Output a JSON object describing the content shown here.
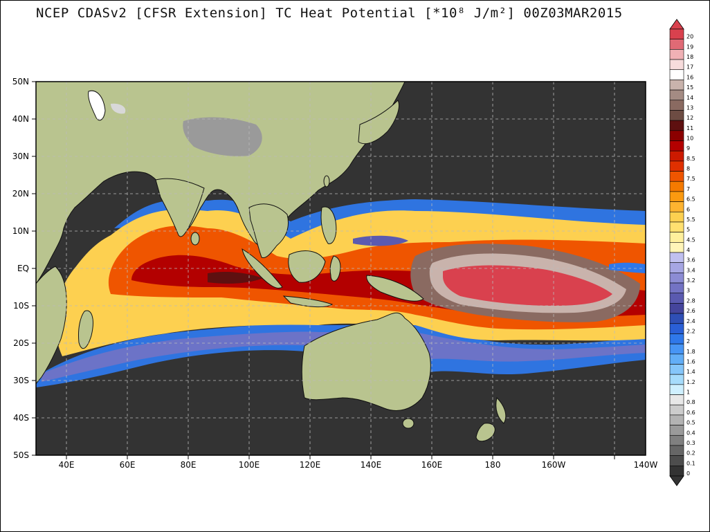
{
  "title": "NCEP CDASv2 [CFSR Extension] TC Heat Potential [*10⁸ J/m²] 00Z03MAR2015",
  "axes": {
    "lat_labels": [
      "50N",
      "40N",
      "30N",
      "20N",
      "10N",
      "EQ",
      "10S",
      "20S",
      "30S",
      "40S",
      "50S"
    ],
    "lon_labels": [
      "40E",
      "60E",
      "80E",
      "100E",
      "120E",
      "140E",
      "160E",
      "180",
      "160W",
      "140W"
    ]
  },
  "colorbar": {
    "levels": [
      "20",
      "19",
      "18",
      "17",
      "16",
      "15",
      "14",
      "13",
      "12",
      "11",
      "10",
      "9",
      "8.5",
      "8",
      "7.5",
      "7",
      "6.5",
      "6",
      "5.5",
      "5",
      "4.5",
      "4",
      "3.6",
      "3.4",
      "3.2",
      "3",
      "2.8",
      "2.6",
      "2.4",
      "2.2",
      "2",
      "1.8",
      "1.6",
      "1.4",
      "1.2",
      "1",
      "0.8",
      "0.6",
      "0.5",
      "0.4",
      "0.3",
      "0.2",
      "0.1",
      "0"
    ],
    "colors": [
      "#d9414e",
      "#e06a75",
      "#f0b1b5",
      "#f7dcdc",
      "#ffffff",
      "#c9b3ac",
      "#a48b83",
      "#8a6a61",
      "#6d4c43",
      "#5e1010",
      "#8b0000",
      "#b30000",
      "#cc1a00",
      "#e03000",
      "#ef5500",
      "#f57a00",
      "#fb9a10",
      "#fdb330",
      "#fdd050",
      "#ffe070",
      "#fff09c",
      "#fff5b8",
      "#c0c0f0",
      "#a6a6e3",
      "#8c8cd4",
      "#7373c4",
      "#5a5ab0",
      "#45459c",
      "#2f4fb5",
      "#2a5fd6",
      "#2f78ea",
      "#4795f5",
      "#62aef7",
      "#85c6fa",
      "#a6dcfc",
      "#cff0ff",
      "#e8e8e8",
      "#cccccc",
      "#b3b3b3",
      "#9a9a9a",
      "#808080",
      "#666666",
      "#4d4d4d",
      "#333333"
    ]
  }
}
